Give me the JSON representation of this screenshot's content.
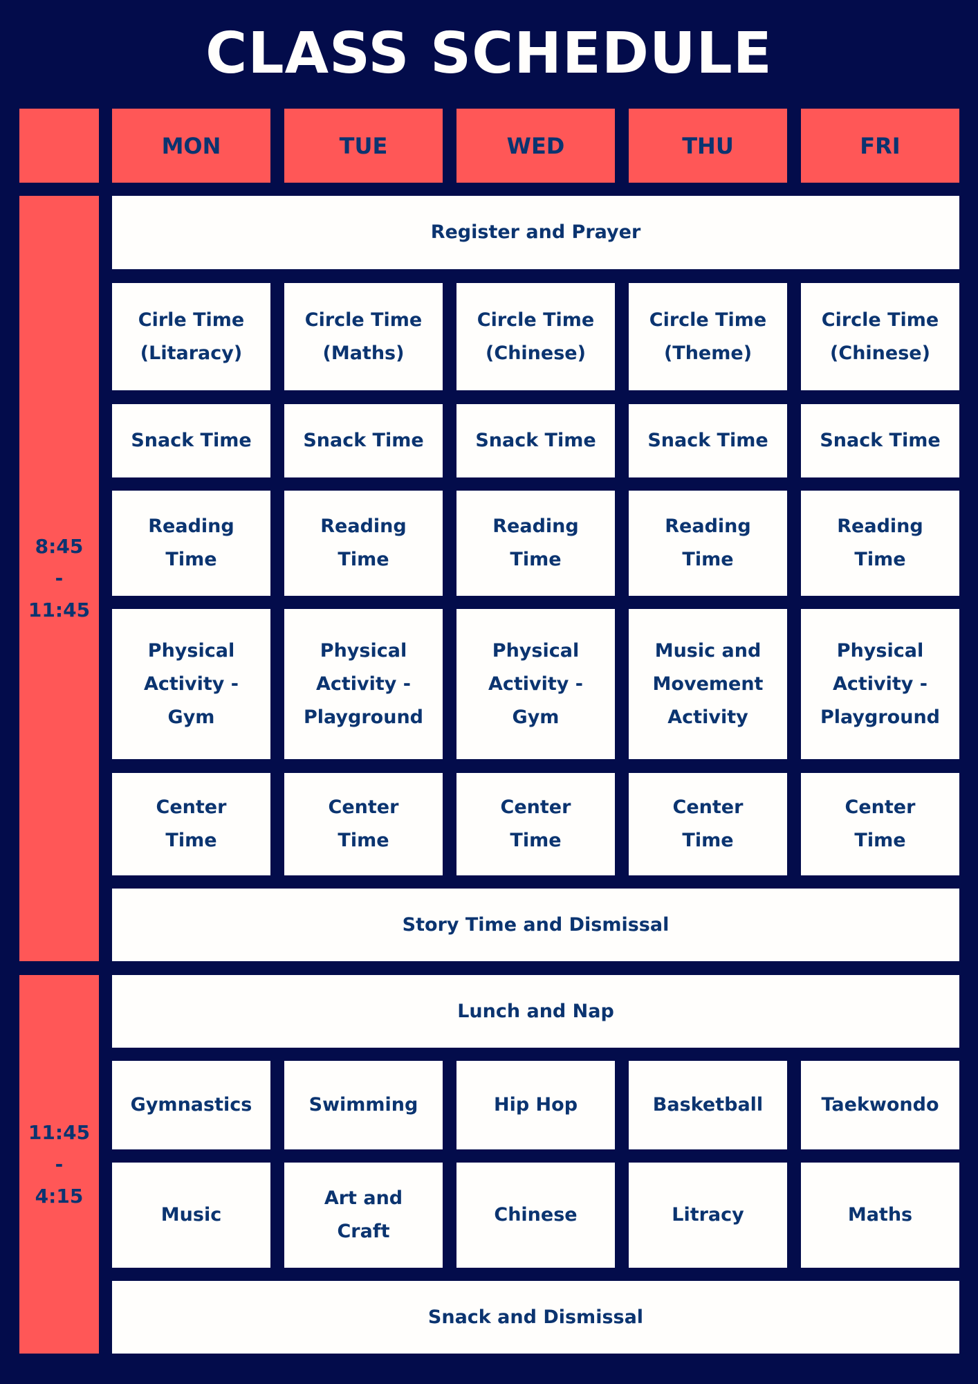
{
  "title": "CLASS SCHEDULE",
  "colors": {
    "background": "#030c4b",
    "header": "#ff5757",
    "cell": "#fffefc",
    "text": "#0b3470",
    "title": "#fffefc"
  },
  "days": [
    "MON",
    "TUE",
    "WED",
    "THU",
    "FRI"
  ],
  "morning": {
    "time": "8:45\n-\n11:45",
    "register": "Register and Prayer",
    "circle": [
      "Cirle Time\n(Litaracy)",
      "Circle Time\n(Maths)",
      "Circle Time\n(Chinese)",
      "Circle Time\n(Theme)",
      "Circle Time\n(Chinese)"
    ],
    "snack": [
      "Snack Time",
      "Snack Time",
      "Snack Time",
      "Snack Time",
      "Snack Time"
    ],
    "reading": [
      "Reading\nTime",
      "Reading\nTime",
      "Reading\nTime",
      "Reading\nTime",
      "Reading\nTime"
    ],
    "physical": [
      "Physical\nActivity -\nGym",
      "Physical\nActivity -\nPlayground",
      "Physical\nActivity -\nGym",
      "Music and\nMovement\nActivity",
      "Physical\nActivity -\nPlayground"
    ],
    "center": [
      "Center\nTime",
      "Center\nTime",
      "Center\nTime",
      "Center\nTime",
      "Center\nTime"
    ],
    "story": "Story Time and Dismissal"
  },
  "afternoon": {
    "time": "11:45\n-\n4:15",
    "lunch": "Lunch and Nap",
    "sports": [
      "Gymnastics",
      "Swimming",
      "Hip Hop",
      "Basketball",
      "Taekwondo"
    ],
    "subjects": [
      "Music",
      "Art and\nCraft",
      "Chinese",
      "Litracy",
      "Maths"
    ],
    "dismissal": "Snack and Dismissal"
  }
}
